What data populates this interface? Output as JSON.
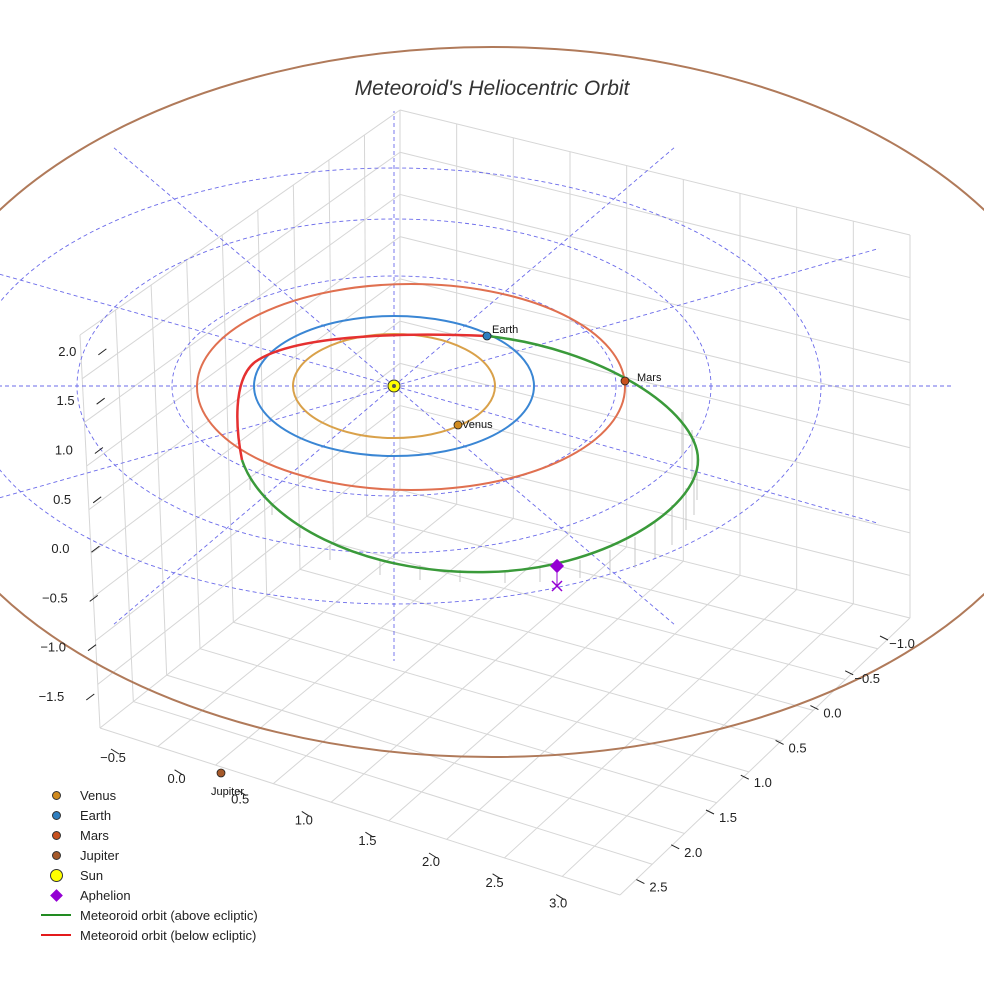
{
  "chart_data": {
    "type": "3d-orbit",
    "title": "Meteoroid's Heliocentric Orbit",
    "x_ticks": [
      "−1.0",
      "−0.5",
      "0.0",
      "0.5",
      "1.0",
      "1.5",
      "2.0",
      "2.5"
    ],
    "y_ticks": [
      "−0.5",
      "0.0",
      "0.5",
      "1.0",
      "1.5",
      "2.0",
      "2.5",
      "3.0"
    ],
    "z_ticks": [
      "−1.5",
      "−1.0",
      "−0.5",
      "0.0",
      "0.5",
      "1.0",
      "1.5",
      "2.0"
    ],
    "planets": [
      {
        "name": "Venus",
        "color": "#d08a1e",
        "orbit_color": "#d9a14a",
        "semi_major_au": 0.72
      },
      {
        "name": "Earth",
        "color": "#2f7fc1",
        "orbit_color": "#3a86d4",
        "semi_major_au": 1.0
      },
      {
        "name": "Mars",
        "color": "#c8511e",
        "orbit_color": "#e07050",
        "semi_major_au": 1.52
      },
      {
        "name": "Jupiter",
        "color": "#a5592a",
        "orbit_color": "#b07a5a",
        "semi_major_au": 5.2
      }
    ],
    "sun": {
      "name": "Sun",
      "color": "#ffff00"
    },
    "aphelion": {
      "name": "Aphelion",
      "color": "#9400d3"
    },
    "meteoroid": {
      "above_label": "Meteoroid orbit (above ecliptic)",
      "above_color": "#3a9a3a",
      "below_label": "Meteoroid orbit (below ecliptic)",
      "below_color": "#e53030"
    }
  },
  "legend": [
    {
      "label": "Venus",
      "symbol": "dot",
      "color": "#d08a1e"
    },
    {
      "label": "Earth",
      "symbol": "dot",
      "color": "#2f7fc1"
    },
    {
      "label": "Mars",
      "symbol": "dot",
      "color": "#c8511e"
    },
    {
      "label": "Jupiter",
      "symbol": "dot",
      "color": "#a5592a"
    },
    {
      "label": "Sun",
      "symbol": "bigdot",
      "color": "#ffff00"
    },
    {
      "label": "Aphelion",
      "symbol": "diamond",
      "color": "#9400d3"
    },
    {
      "label": "Meteoroid orbit (above ecliptic)",
      "symbol": "line",
      "color": "#228b22"
    },
    {
      "label": "Meteoroid orbit (below ecliptic)",
      "symbol": "line",
      "color": "#e31a1c"
    }
  ]
}
